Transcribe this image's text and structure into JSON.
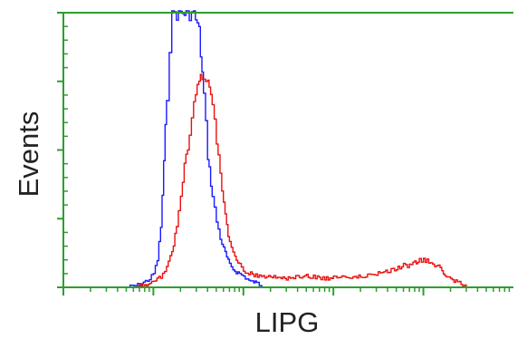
{
  "chart_data": {
    "type": "line",
    "title": "",
    "xlabel": "LIPG",
    "ylabel": "Events",
    "x_scale": "log",
    "xlim": [
      1,
      100000
    ],
    "ylim": [
      0,
      100
    ],
    "grid": false,
    "legend": "none",
    "axis_color": "#2e9e2e",
    "series": [
      {
        "color": "#1a1aff",
        "x": [
          5,
          7,
          9,
          10,
          11,
          12,
          13,
          14,
          15,
          16,
          17,
          18,
          19,
          20,
          22,
          25,
          28,
          32,
          36,
          40,
          45,
          50,
          55,
          60,
          65,
          70,
          80,
          90,
          100,
          110,
          120,
          130,
          140,
          150,
          160,
          170
        ],
        "y": [
          0,
          1,
          3,
          5,
          10,
          22,
          45,
          70,
          88,
          100,
          100,
          100,
          100,
          100,
          100,
          100,
          100,
          93,
          70,
          48,
          33,
          24,
          18,
          14,
          11,
          8,
          6,
          5,
          4,
          3,
          2,
          2,
          1.5,
          1,
          0.5,
          0
        ]
      },
      {
        "color": "#e81010",
        "x": [
          6,
          8,
          10,
          12,
          14,
          16,
          18,
          20,
          22,
          25,
          28,
          32,
          36,
          40,
          45,
          50,
          55,
          60,
          65,
          70,
          80,
          90,
          100,
          120,
          150,
          200,
          300,
          400,
          600,
          800,
          1000,
          1500,
          2000,
          3000,
          4000,
          5000,
          6000,
          7000,
          8000,
          9000,
          10000,
          12000,
          14000,
          16000,
          18000,
          20000,
          25000,
          30000
        ],
        "y": [
          0,
          1,
          2,
          4,
          7,
          13,
          22,
          32,
          44,
          55,
          66,
          76,
          78,
          75,
          66,
          54,
          40,
          30,
          22,
          16,
          11,
          8,
          6,
          5,
          4,
          4,
          3,
          4,
          4,
          3,
          4,
          4,
          4,
          5,
          6,
          7,
          8,
          8,
          9,
          10,
          10,
          9,
          8,
          6,
          4,
          3,
          1.5,
          0
        ]
      }
    ]
  }
}
